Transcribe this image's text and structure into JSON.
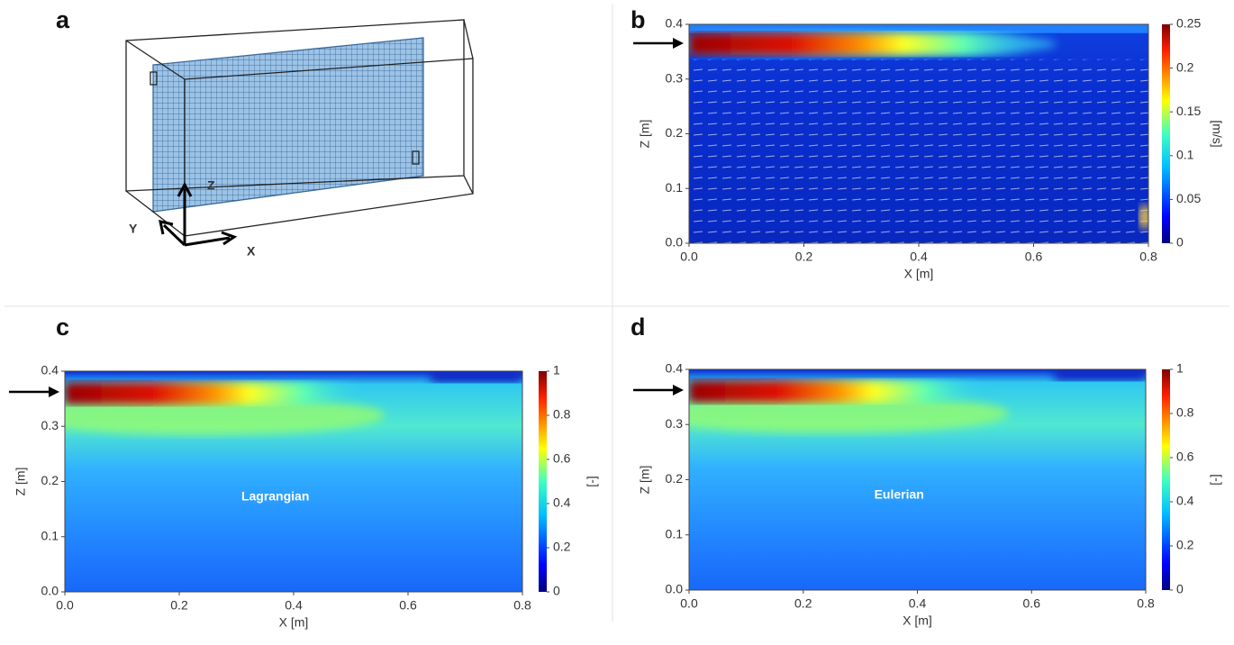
{
  "panels": [
    {
      "label": "a",
      "axes": [
        "Z",
        "Y",
        "X"
      ]
    },
    {
      "label": "b",
      "xlabel": "X [m]",
      "ylabel": "Z [m]",
      "xlim": [
        0,
        0.8
      ],
      "ylim": [
        0,
        0.4
      ],
      "xticks": [
        {
          "value": 0,
          "label": "0.0"
        },
        0.2,
        0.4,
        0.6,
        0.8
      ],
      "yticks": [
        {
          "value": 0,
          "label": "0.0"
        },
        0.1,
        0.2,
        0.3,
        0.4
      ],
      "colorbar": {
        "label": "[m/s]",
        "lim": [
          0,
          0.25
        ],
        "ticks": [
          0,
          0.05,
          0.1,
          0.15,
          0.2,
          0.25
        ]
      }
    },
    {
      "label": "c",
      "xlabel": "X [m]",
      "ylabel": "Z [m]",
      "xlim": [
        0,
        0.8
      ],
      "ylim": [
        0,
        0.4
      ],
      "xticks": [
        {
          "value": 0,
          "label": "0.0"
        },
        0.2,
        0.4,
        0.6,
        0.8
      ],
      "yticks": [
        {
          "value": 0,
          "label": "0.0"
        },
        0.1,
        0.2,
        0.3,
        0.4
      ],
      "annotation": "Lagrangian",
      "colorbar": {
        "label": "[-]",
        "lim": [
          0,
          1
        ],
        "ticks": [
          0,
          0.2,
          0.4,
          0.6,
          0.8,
          1
        ]
      }
    },
    {
      "label": "d",
      "xlabel": "X [m]",
      "ylabel": "Z [m]",
      "xlim": [
        0,
        0.8
      ],
      "ylim": [
        0,
        0.4
      ],
      "xticks": [
        {
          "value": 0,
          "label": "0.0"
        },
        0.2,
        0.4,
        0.6,
        0.8
      ],
      "yticks": [
        {
          "value": 0,
          "label": "0.0"
        },
        0.1,
        0.2,
        0.3,
        0.4
      ],
      "annotation": "Eulerian",
      "colorbar": {
        "label": "[-]",
        "lim": [
          0,
          1
        ],
        "ticks": [
          0,
          0.2,
          0.4,
          0.6,
          0.8,
          1
        ]
      }
    }
  ]
}
